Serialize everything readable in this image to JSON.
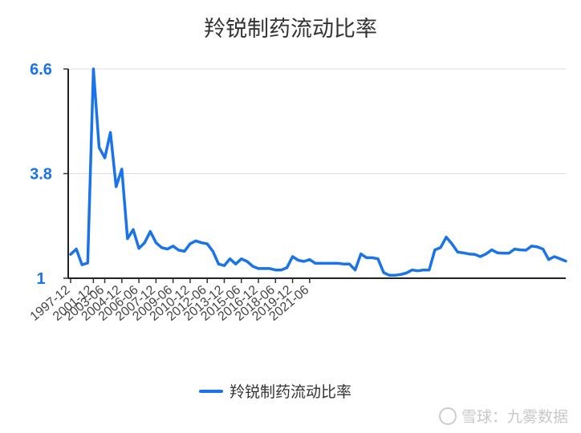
{
  "chart_data": {
    "type": "line",
    "title": "羚锐制药流动比率",
    "legend_position": "bottom",
    "xlabel": "",
    "ylabel": "",
    "ylim": [
      1,
      6.6
    ],
    "y_ticks": [
      "1",
      "3.8",
      "6.6"
    ],
    "grid": true,
    "x_tick_labels": [
      "1997-12",
      "2001-12",
      "2003-06",
      "2004-12",
      "2006-06",
      "2007-12",
      "2009-06",
      "2010-12",
      "2012-06",
      "2013-12",
      "2015-06",
      "2016-12",
      "2018-06",
      "2019-12",
      "2021-06"
    ],
    "series": [
      {
        "name": "羚锐制药流动比率",
        "color": "#1a73e8",
        "values": [
          1.64,
          1.78,
          1.36,
          1.41,
          6.6,
          4.5,
          4.22,
          4.9,
          3.45,
          3.92,
          2.06,
          2.3,
          1.8,
          1.95,
          2.25,
          1.95,
          1.82,
          1.78,
          1.86,
          1.75,
          1.72,
          1.92,
          2.0,
          1.95,
          1.92,
          1.72,
          1.38,
          1.34,
          1.52,
          1.38,
          1.52,
          1.45,
          1.32,
          1.26,
          1.26,
          1.26,
          1.22,
          1.22,
          1.28,
          1.58,
          1.48,
          1.45,
          1.5,
          1.4,
          1.4,
          1.4,
          1.4,
          1.4,
          1.38,
          1.38,
          1.22,
          1.65,
          1.55,
          1.55,
          1.52,
          1.15,
          1.08,
          1.08,
          1.1,
          1.14,
          1.22,
          1.2,
          1.22,
          1.22,
          1.76,
          1.82,
          2.1,
          1.92,
          1.7,
          1.68,
          1.65,
          1.64,
          1.58,
          1.65,
          1.76,
          1.68,
          1.67,
          1.67,
          1.78,
          1.76,
          1.75,
          1.86,
          1.84,
          1.78,
          1.5,
          1.58,
          1.52,
          1.46
        ]
      }
    ],
    "x_tick_indices": [
      0,
      4,
      6,
      9,
      12,
      15,
      18,
      21,
      24,
      27,
      30,
      33,
      36,
      39,
      42
    ]
  },
  "watermark": "雪球：九雾数据"
}
